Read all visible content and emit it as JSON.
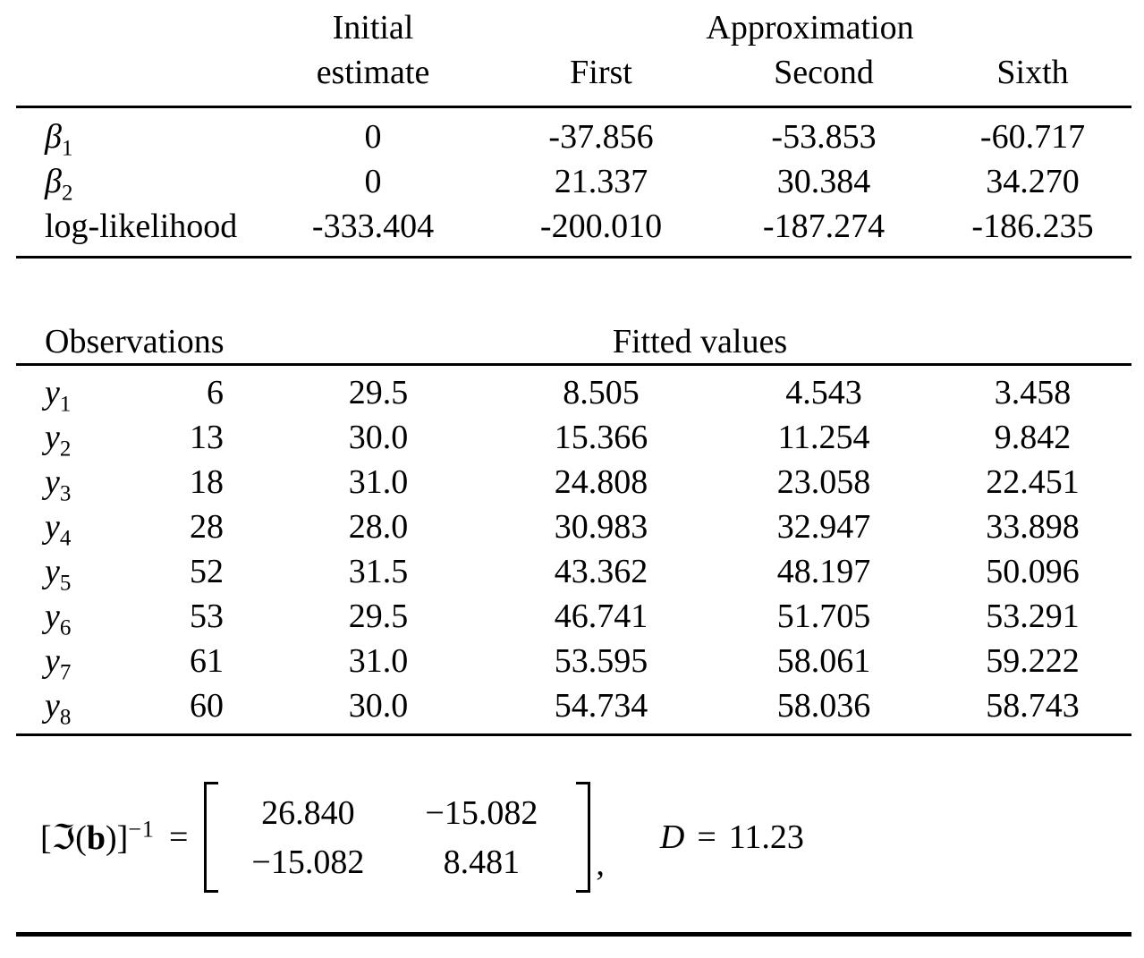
{
  "colors": {
    "text": "#000000",
    "background": "#ffffff",
    "rule": "#000000"
  },
  "table1": {
    "header": {
      "initial_line1": "Initial",
      "initial_line2": "estimate",
      "approximation": "Approximation",
      "first": "First",
      "second": "Second",
      "sixth": "Sixth"
    },
    "rows": [
      {
        "label_base": "β",
        "label_sub": "1",
        "values": [
          "0",
          "-37.856",
          "-53.853",
          "-60.717"
        ]
      },
      {
        "label_base": "β",
        "label_sub": "2",
        "values": [
          "0",
          "21.337",
          "30.384",
          "34.270"
        ]
      },
      {
        "label_base": "log-likelihood",
        "label_sub": "",
        "values": [
          "-333.404",
          "-200.010",
          "-187.274",
          "-186.235"
        ]
      }
    ]
  },
  "table2": {
    "header": {
      "observations": "Observations",
      "fitted_values": "Fitted values"
    },
    "rows": [
      {
        "label_base": "y",
        "label_sub": "1",
        "obs": "6",
        "fitted": [
          "29.5",
          "8.505",
          "4.543",
          "3.458"
        ]
      },
      {
        "label_base": "y",
        "label_sub": "2",
        "obs": "13",
        "fitted": [
          "30.0",
          "15.366",
          "11.254",
          "9.842"
        ]
      },
      {
        "label_base": "y",
        "label_sub": "3",
        "obs": "18",
        "fitted": [
          "31.0",
          "24.808",
          "23.058",
          "22.451"
        ]
      },
      {
        "label_base": "y",
        "label_sub": "4",
        "obs": "28",
        "fitted": [
          "28.0",
          "30.983",
          "32.947",
          "33.898"
        ]
      },
      {
        "label_base": "y",
        "label_sub": "5",
        "obs": "52",
        "fitted": [
          "31.5",
          "43.362",
          "48.197",
          "50.096"
        ]
      },
      {
        "label_base": "y",
        "label_sub": "6",
        "obs": "53",
        "fitted": [
          "29.5",
          "46.741",
          "51.705",
          "53.291"
        ]
      },
      {
        "label_base": "y",
        "label_sub": "7",
        "obs": "61",
        "fitted": [
          "31.0",
          "53.595",
          "58.061",
          "59.222"
        ]
      },
      {
        "label_base": "y",
        "label_sub": "8",
        "obs": "60",
        "fitted": [
          "30.0",
          "54.734",
          "58.036",
          "58.743"
        ]
      }
    ]
  },
  "equation": {
    "open_bracket": "[",
    "frak_i": "ℑ",
    "open_paren": "(",
    "b_vector": "b",
    "close_paren": ")",
    "close_bracket": "]",
    "superscript": "−1",
    "equals": "=",
    "matrix": [
      [
        "26.840",
        "−15.082"
      ],
      [
        "−15.082",
        "8.481"
      ]
    ],
    "comma": ",",
    "d_symbol": "D",
    "d_equals": "=",
    "d_value": "11.23"
  }
}
